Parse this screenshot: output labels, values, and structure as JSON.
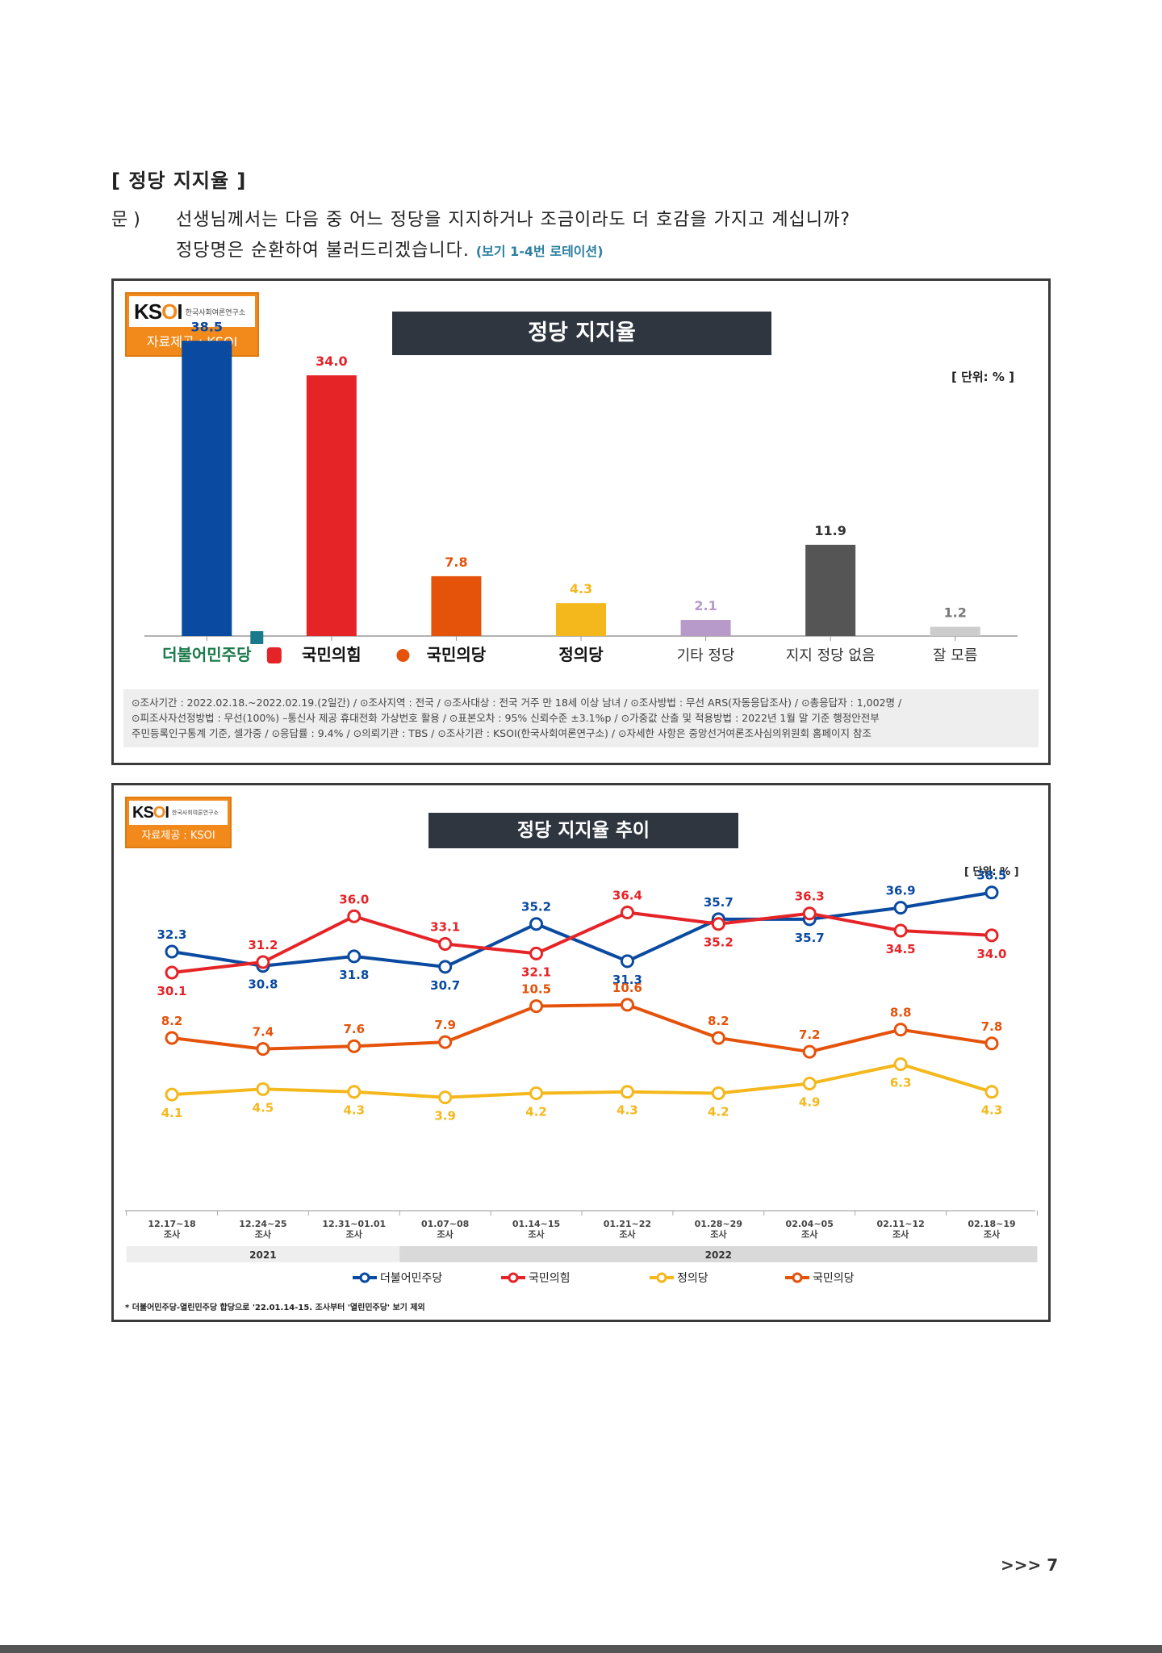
{
  "section_title": "[ 정당 지지율 ]",
  "question": {
    "label": "문 )",
    "line1": "선생님께서는 다음 중 어느 정당을 지지하거나 조금이라도 더 호감을 가지고 계십니까?",
    "line2": "정당명은 순환하여 불러드리겠습니다.",
    "note": "(보기 1-4번 로테이션)"
  },
  "logo": {
    "brand_a": "KS",
    "brand_b": "O",
    "brand_c": "I",
    "subtitle": "한국사회여론연구소",
    "source": "자료제공 : KSOI"
  },
  "colors": {
    "democratic": "#0a4aa0",
    "ppp": "#e52428",
    "people": "#e5520a",
    "justice": "#f5b81c",
    "other": "#b79ac9",
    "none": "#555555",
    "dontknow": "#cccccc"
  },
  "chart_data": [
    {
      "type": "bar",
      "title": "정당 지지율",
      "unit": "[ 단위: % ]",
      "categories": [
        "더불어민주당",
        "국민의힘",
        "국민의당",
        "정의당",
        "기타 정당",
        "지지 정당 없음",
        "잘 모름"
      ],
      "values": [
        38.5,
        34.0,
        7.8,
        4.3,
        2.1,
        11.9,
        1.2
      ],
      "value_labels": [
        "38.5",
        "34.0",
        "7.8",
        "4.3",
        "2.1",
        "11.9",
        "1.2"
      ],
      "colors": [
        "#0a4aa0",
        "#e52428",
        "#e5520a",
        "#f5b81c",
        "#b79ac9",
        "#555555",
        "#cccccc"
      ],
      "label_colors": [
        "#0a4aa0",
        "#e52428",
        "#e5520a",
        "#f5b81c",
        "#b79ac9",
        "#333333",
        "#777777"
      ],
      "ylim": [
        0,
        40
      ],
      "grid": false
    },
    {
      "type": "line",
      "title": "정당 지지율 추이",
      "unit": "[ 단위: % ]",
      "x": [
        "12.17~18\n조사",
        "12.24~25\n조사",
        "12.31~01.01\n조사",
        "01.07~08\n조사",
        "01.14~15\n조사",
        "01.21~22\n조사",
        "01.28~29\n조사",
        "02.04~05\n조사",
        "02.11~12\n조사",
        "02.18~19\n조사"
      ],
      "years": [
        {
          "label": "2021",
          "span": 3
        },
        {
          "label": "2022",
          "span": 7
        }
      ],
      "series": [
        {
          "name": "더불어민주당",
          "color": "#0a4aa0",
          "values": [
            32.3,
            30.8,
            31.8,
            30.7,
            35.2,
            31.3,
            35.7,
            35.7,
            36.9,
            38.5
          ],
          "labels": [
            "32.3",
            "30.8",
            "31.8",
            "30.7",
            "35.2",
            "31.3",
            "35.7",
            "35.7",
            "36.9",
            "38.5"
          ],
          "label_pos": [
            "above",
            "below",
            "below",
            "below",
            "above",
            "below",
            "above",
            "below",
            "above",
            "above"
          ]
        },
        {
          "name": "국민의힘",
          "color": "#e52428",
          "values": [
            30.1,
            31.2,
            36.0,
            33.1,
            32.1,
            36.4,
            35.2,
            36.3,
            34.5,
            34.0
          ],
          "labels": [
            "30.1",
            "31.2",
            "36.0",
            "33.1",
            "32.1",
            "36.4",
            "35.2",
            "36.3",
            "34.5",
            "34.0"
          ],
          "label_pos": [
            "below",
            "above",
            "above",
            "above",
            "below",
            "above",
            "below",
            "above",
            "below",
            "below"
          ]
        },
        {
          "name": "정의당",
          "color": "#f5b81c",
          "values": [
            4.1,
            4.5,
            4.3,
            3.9,
            4.2,
            4.3,
            4.2,
            4.9,
            6.3,
            4.3
          ],
          "labels": [
            "4.1",
            "4.5",
            "4.3",
            "3.9",
            "4.2",
            "4.3",
            "4.2",
            "4.9",
            "6.3",
            "4.3"
          ],
          "label_pos": [
            "below",
            "below",
            "below",
            "below",
            "below",
            "below",
            "below",
            "below",
            "below",
            "below"
          ]
        },
        {
          "name": "국민의당",
          "color": "#e5520a",
          "values": [
            8.2,
            7.4,
            7.6,
            7.9,
            10.5,
            10.6,
            8.2,
            7.2,
            8.8,
            7.8
          ],
          "labels": [
            "8.2",
            "7.4",
            "7.6",
            "7.9",
            "10.5",
            "10.6",
            "8.2",
            "7.2",
            "8.8",
            "7.8"
          ],
          "label_pos": [
            "above",
            "above",
            "above",
            "above",
            "above",
            "above",
            "above",
            "above",
            "above",
            "above"
          ]
        }
      ],
      "legend_order": [
        "더불어민주당",
        "국민의힘",
        "정의당",
        "국민의당"
      ],
      "legend_position": "bottom",
      "footnote": "* 더불어민주당-열린민주당 합당으로 '22.01.14-15. 조사부터 '열린민주당' 보기 제외"
    }
  ],
  "survey_info": {
    "line1": "⊙조사기간 : 2022.02.18.~2022.02.19.(2일간)  / ⊙조사지역 : 전국 / ⊙조사대상 : 전국 거주 만 18세 이상 남녀 / ⊙조사방법 : 무선 ARS(자동응답조사) / ⊙총응답자 : 1,002명 /",
    "line2": "⊙피조사자선정방법 : 무선(100%) –통신사 제공 휴대전화 가상번호 활용 / ⊙표본오차 : 95% 신뢰수준 ±3.1%p / ⊙가중값 산출 및 적용방법 : 2022년 1월 말 기준 행정안전부",
    "line3": "주민등록인구통계 기준, 셀가중 / ⊙응답률 : 9.4% / ⊙의뢰기관 : TBS / ⊙조사기관 : KSOI(한국사회여론연구소) / ⊙자세한 사항은 중앙선거여론조사심의위원회 홈페이지 참조"
  },
  "page_number": ">>> 7"
}
